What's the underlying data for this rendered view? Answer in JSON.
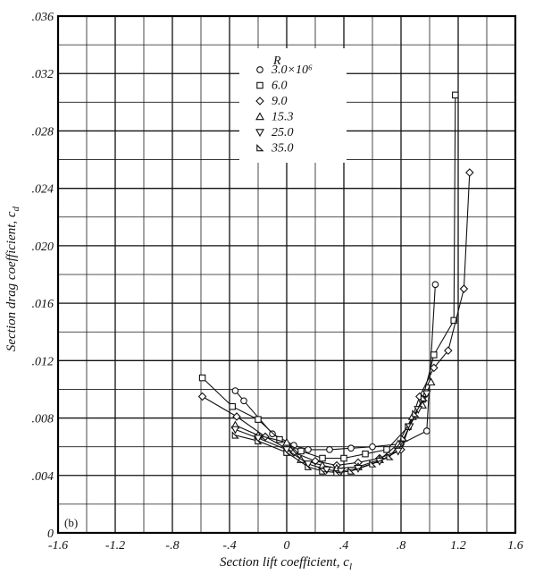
{
  "chart_data": {
    "type": "scatter",
    "title": "",
    "panel_label": "(b)",
    "xlabel": "Section lift coefficient, c",
    "xlabel_sub": "l",
    "ylabel": "Section drag coefficient, c",
    "ylabel_sub": "d",
    "xlim": [
      -1.6,
      1.6
    ],
    "ylim": [
      0,
      0.036
    ],
    "grid": true,
    "x_ticks": [
      {
        "v": -1.6,
        "label": "-1.6"
      },
      {
        "v": -1.2,
        "label": "-1.2"
      },
      {
        "v": -0.8,
        "label": "-.8"
      },
      {
        "v": -0.4,
        "label": "-.4"
      },
      {
        "v": 0,
        "label": "0"
      },
      {
        "v": 0.4,
        "label": ".4"
      },
      {
        "v": 0.8,
        "label": ".8"
      },
      {
        "v": 1.2,
        "label": "1.2"
      },
      {
        "v": 1.6,
        "label": "1.6"
      }
    ],
    "y_ticks": [
      {
        "v": 0,
        "label": "0"
      },
      {
        "v": 0.004,
        "label": ".004"
      },
      {
        "v": 0.008,
        "label": ".008"
      },
      {
        "v": 0.012,
        "label": ".012"
      },
      {
        "v": 0.016,
        "label": ".016"
      },
      {
        "v": 0.02,
        "label": ".020"
      },
      {
        "v": 0.024,
        "label": ".024"
      },
      {
        "v": 0.028,
        "label": ".028"
      },
      {
        "v": 0.032,
        "label": ".032"
      },
      {
        "v": 0.036,
        "label": ".036"
      }
    ],
    "legend_title": "R",
    "legend_position": "top-center",
    "series": [
      {
        "name": "3.0×10⁶",
        "marker": "circle",
        "points": [
          [
            -0.36,
            0.0099
          ],
          [
            -0.3,
            0.0092
          ],
          [
            -0.1,
            0.0069
          ],
          [
            0.05,
            0.0061
          ],
          [
            0.15,
            0.0058
          ],
          [
            0.3,
            0.0058
          ],
          [
            0.45,
            0.0059
          ],
          [
            0.6,
            0.006
          ],
          [
            0.8,
            0.0062
          ],
          [
            0.98,
            0.0071
          ],
          [
            1.04,
            0.0173
          ]
        ]
      },
      {
        "name": "6.0",
        "marker": "square",
        "points": [
          [
            -0.59,
            0.0108
          ],
          [
            -0.38,
            0.0088
          ],
          [
            -0.2,
            0.0079
          ],
          [
            -0.05,
            0.0065
          ],
          [
            0.1,
            0.0057
          ],
          [
            0.25,
            0.0052
          ],
          [
            0.4,
            0.0052
          ],
          [
            0.55,
            0.0055
          ],
          [
            0.7,
            0.0058
          ],
          [
            0.85,
            0.0074
          ],
          [
            0.95,
            0.0093
          ],
          [
            1.03,
            0.0124
          ],
          [
            1.17,
            0.0148
          ],
          [
            1.18,
            0.0305
          ]
        ]
      },
      {
        "name": "9.0",
        "marker": "diamond",
        "points": [
          [
            -0.59,
            0.0095
          ],
          [
            -0.35,
            0.0081
          ],
          [
            -0.15,
            0.0067
          ],
          [
            0.05,
            0.0056
          ],
          [
            0.2,
            0.005
          ],
          [
            0.35,
            0.0047
          ],
          [
            0.5,
            0.0049
          ],
          [
            0.65,
            0.0052
          ],
          [
            0.8,
            0.0058
          ],
          [
            0.93,
            0.0095
          ],
          [
            1.03,
            0.0115
          ],
          [
            1.13,
            0.0127
          ],
          [
            1.24,
            0.017
          ],
          [
            1.28,
            0.0251
          ]
        ]
      },
      {
        "name": "15.3",
        "marker": "triangle-up",
        "points": [
          [
            -0.36,
            0.0075
          ],
          [
            -0.2,
            0.0068
          ],
          [
            0,
            0.0063
          ],
          [
            0.1,
            0.0051
          ],
          [
            0.25,
            0.0047
          ],
          [
            0.35,
            0.0045
          ],
          [
            0.5,
            0.0046
          ],
          [
            0.65,
            0.0051
          ],
          [
            0.78,
            0.0062
          ],
          [
            0.88,
            0.0081
          ],
          [
            0.95,
            0.0089
          ],
          [
            1.01,
            0.0105
          ]
        ]
      },
      {
        "name": "25.0",
        "marker": "triangle-down",
        "points": [
          [
            -0.36,
            0.0072
          ],
          [
            -0.2,
            0.0066
          ],
          [
            0,
            0.0058
          ],
          [
            0.15,
            0.0048
          ],
          [
            0.28,
            0.0044
          ],
          [
            0.38,
            0.0043
          ],
          [
            0.5,
            0.0045
          ],
          [
            0.65,
            0.005
          ],
          [
            0.78,
            0.0057
          ],
          [
            0.86,
            0.0074
          ],
          [
            0.92,
            0.0086
          ],
          [
            0.98,
            0.0097
          ]
        ]
      },
      {
        "name": "35.0",
        "marker": "triangle-left",
        "points": [
          [
            -0.36,
            0.0068
          ],
          [
            -0.2,
            0.0064
          ],
          [
            0,
            0.0056
          ],
          [
            0.15,
            0.0046
          ],
          [
            0.25,
            0.0043
          ],
          [
            0.35,
            0.0042
          ],
          [
            0.45,
            0.0043
          ],
          [
            0.6,
            0.0048
          ],
          [
            0.72,
            0.0053
          ],
          [
            0.82,
            0.0066
          ],
          [
            0.9,
            0.0083
          ],
          [
            0.96,
            0.0094
          ]
        ]
      }
    ]
  }
}
